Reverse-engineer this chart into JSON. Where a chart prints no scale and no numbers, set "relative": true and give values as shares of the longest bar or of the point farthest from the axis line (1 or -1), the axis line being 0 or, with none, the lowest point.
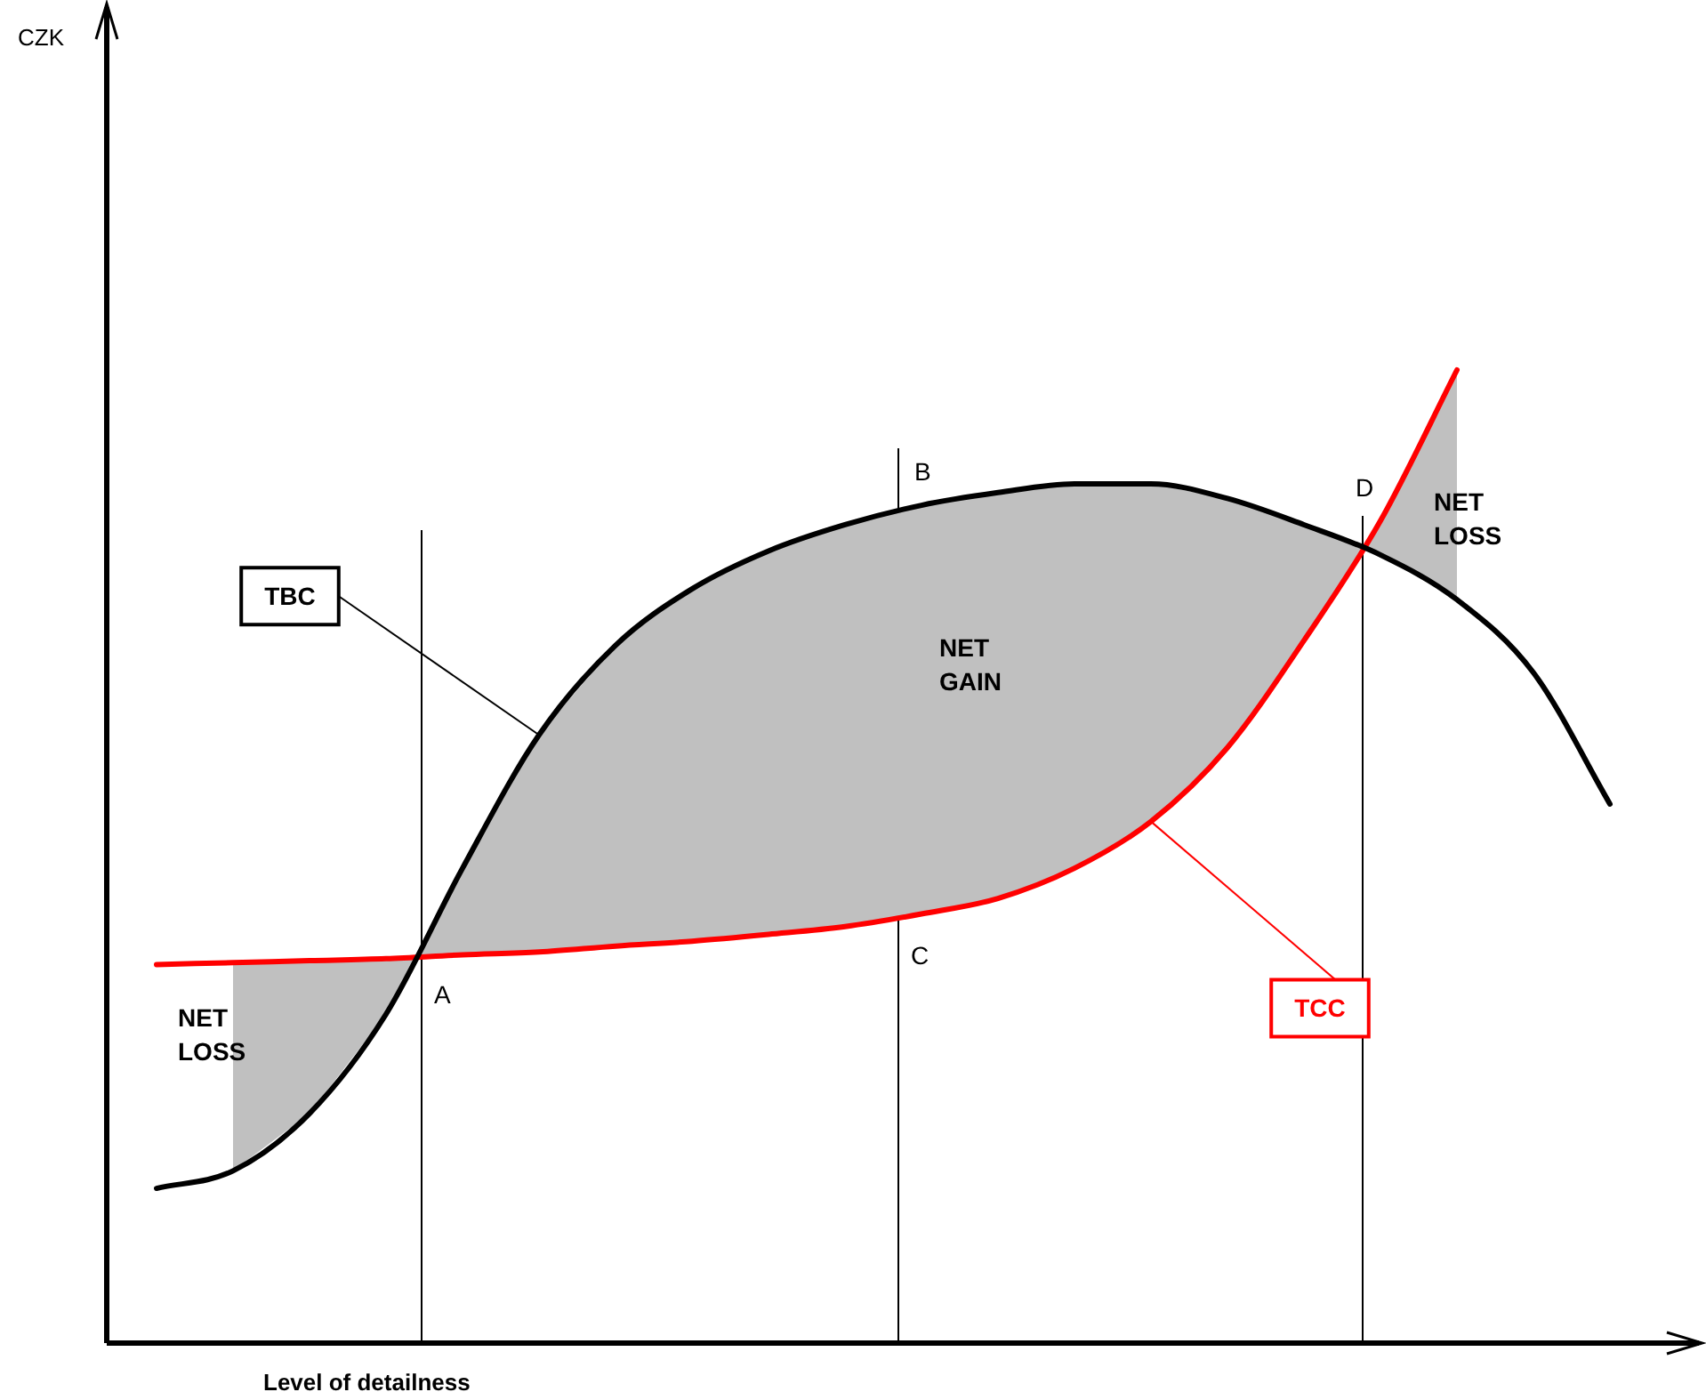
{
  "chart_data": {
    "type": "line",
    "relative": true,
    "xlabel": "Level of detailness",
    "categories": [
      null,
      null,
      null,
      null,
      null,
      null,
      null,
      null,
      null,
      null,
      null,
      null,
      null,
      null,
      null,
      null,
      null,
      null,
      null,
      null
    ],
    "series": [
      {
        "name": "TBC",
        "color": "#000000",
        "values": [
          0.159,
          0.177,
          0.236,
          0.338,
          0.488,
          0.625,
          0.717,
          0.775,
          0.814,
          0.841,
          0.861,
          0.874,
          0.883,
          0.883,
          0.868,
          0.841,
          0.81,
          0.764,
          0.689,
          0.554
        ],
        "upper": [
          null,
          0.177,
          0.236,
          0.338,
          0.488,
          0.625,
          0.717,
          0.775,
          0.814,
          0.841,
          0.861,
          0.874,
          0.883,
          0.883,
          0.868,
          0.841,
          0.81,
          0.764,
          null,
          null
        ],
        "lower": [
          null,
          0.391,
          0.393,
          0.395,
          0.399,
          0.402,
          0.408,
          0.413,
          0.42,
          0.428,
          0.441,
          0.457,
          0.488,
          0.536,
          0.612,
          0.722,
          0.845,
          1,
          null,
          null
        ]
      },
      {
        "name": "TCC",
        "color": "#ff0000",
        "values": [
          0.389,
          0.391,
          0.393,
          0.395,
          0.399,
          0.402,
          0.408,
          0.413,
          0.42,
          0.428,
          0.441,
          0.457,
          0.488,
          0.536,
          0.612,
          0.722,
          0.845,
          1,
          null,
          null
        ]
      }
    ],
    "annotations": [
      "CZK",
      "NET LOSS",
      "NET GAIN",
      "NET LOSS",
      "A",
      "B",
      "C",
      "D"
    ],
    "grid": false,
    "legend": false,
    "marker": "none",
    "line_style": "solid"
  }
}
